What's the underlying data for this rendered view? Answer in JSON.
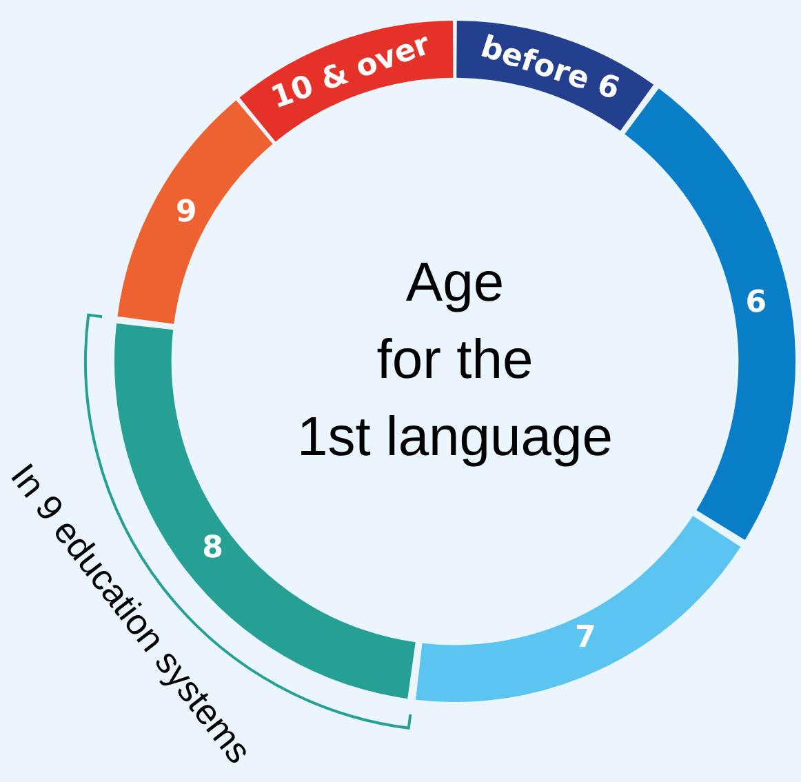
{
  "chart_data": {
    "type": "donut",
    "title": "Age\nfor the\n1st language",
    "categories": [
      "before 6",
      "6",
      "7",
      "8",
      "9",
      "10 & over"
    ],
    "values": [
      10,
      24,
      18,
      25,
      12,
      11
    ],
    "colors": [
      "#253f8f",
      "#0a7dc8",
      "#5bc4f0",
      "#26a094",
      "#ee6130",
      "#e53128"
    ],
    "annotations": [
      {
        "text": "In 9 education systems",
        "x": "8"
      }
    ],
    "legend": false
  }
}
